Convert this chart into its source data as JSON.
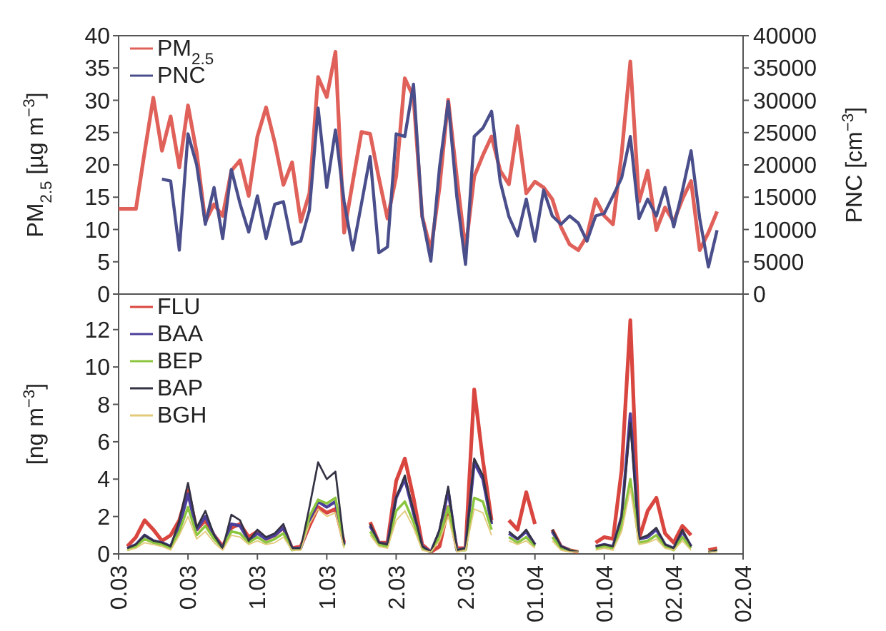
{
  "chart_data": [
    {
      "type": "line",
      "ylabel": "PM$_{2.5}$ [µg m$^{−3}$]",
      "y2label": "PNC [cm$^{−3}$]",
      "legend": "top left",
      "ylim": [
        0,
        40
      ],
      "yticks": [
        0,
        5,
        10,
        15,
        20,
        25,
        30,
        35,
        40
      ],
      "y2lim": [
        0,
        40000
      ],
      "y2ticks": [
        0,
        5000,
        10000,
        15000,
        20000,
        25000,
        30000,
        35000,
        40000
      ],
      "categories": [
        null,
        null,
        null,
        null,
        null,
        null,
        null,
        null,
        null,
        null,
        null,
        null,
        null,
        null,
        null,
        null,
        null,
        null,
        null,
        null,
        null,
        null,
        null,
        null,
        null,
        null,
        null,
        null,
        null,
        null,
        null,
        null,
        null,
        null,
        null,
        null,
        null,
        null,
        null,
        null,
        null,
        null,
        null,
        null,
        null,
        null,
        null,
        null,
        null,
        null,
        null,
        null,
        null,
        null,
        null,
        null,
        null,
        null,
        null,
        null,
        null,
        null,
        null,
        null,
        null,
        null,
        null,
        null,
        null,
        null,
        null,
        null,
        null
      ],
      "series": [
        {
          "name": "PM$_{2.5}$",
          "color": "#e0605a",
          "values": [
            13.2,
            13.2,
            13.2,
            22,
            30.4,
            22.2,
            27.5,
            19.6,
            29.2,
            21.9,
            11.2,
            13.9,
            12.1,
            19.1,
            20.7,
            15.2,
            24.4,
            28.9,
            23.5,
            16.9,
            20.4,
            11.2,
            15.6,
            33.6,
            30.5,
            37.5,
            9.5,
            17.4,
            25.1,
            24.8,
            18,
            11.7,
            18.2,
            33.4,
            30.5,
            12,
            6.8,
            16.5,
            30.1,
            18,
            6.8,
            18.2,
            21.5,
            24.4,
            19.1,
            17,
            26,
            15.6,
            17.4,
            16.5,
            14.7,
            10.4,
            7.7,
            6.8,
            9,
            14.7,
            12.1,
            10.8,
            21.8,
            36,
            14.3,
            19.1,
            9.9,
            13.4,
            11.2,
            14.7,
            17.5,
            6.8,
            9.5,
            12.8,
            null,
            null,
            null
          ]
        },
        {
          "name": "PNC",
          "color": "#4a4f8c",
          "axis": "y2",
          "values": [
            null,
            null,
            null,
            null,
            null,
            17800,
            17500,
            6800,
            24800,
            20000,
            10800,
            16500,
            8600,
            19300,
            14000,
            9600,
            15200,
            8600,
            13900,
            14300,
            7700,
            8200,
            13000,
            28800,
            16500,
            25400,
            14300,
            6800,
            14000,
            21300,
            6400,
            7300,
            24800,
            24400,
            32500,
            12000,
            5100,
            19600,
            29800,
            15000,
            4600,
            24400,
            25700,
            28300,
            17400,
            12000,
            9000,
            14700,
            8200,
            16100,
            12100,
            10800,
            12100,
            11000,
            8200,
            12100,
            12500,
            15200,
            18000,
            24400,
            11700,
            14700,
            12100,
            16500,
            10400,
            16000,
            22200,
            11700,
            4200,
            9900,
            null,
            null,
            null
          ]
        }
      ]
    },
    {
      "type": "line",
      "ylabel": "[ng m$^{−3}$]",
      "legend": "top left",
      "ylim": [
        0,
        13.9
      ],
      "yticks": [
        0,
        2,
        4,
        6,
        8,
        10,
        12
      ],
      "categories": [
        "0.03",
        null,
        null,
        null,
        null,
        null,
        null,
        null,
        "0.03",
        null,
        null,
        null,
        null,
        null,
        null,
        null,
        "1.03",
        null,
        null,
        null,
        null,
        null,
        null,
        null,
        "1.03",
        null,
        null,
        null,
        null,
        null,
        null,
        null,
        "2.03",
        null,
        null,
        null,
        null,
        null,
        null,
        null,
        "2.03",
        null,
        null,
        null,
        null,
        null,
        null,
        null,
        "01.04",
        null,
        null,
        null,
        null,
        null,
        null,
        null,
        "01.04",
        null,
        null,
        null,
        null,
        null,
        null,
        null,
        "02.04",
        null,
        null,
        null,
        null,
        null,
        null,
        null,
        "02.04"
      ],
      "series": [
        {
          "name": "FLU",
          "color": "#d9463f",
          "values": [
            null,
            0.4,
            0.9,
            1.8,
            1.3,
            0.7,
            1.0,
            1.8,
            3.4,
            1.3,
            1.8,
            1.0,
            0.4,
            1.4,
            1.6,
            0.9,
            1.2,
            0.8,
            1.0,
            1.4,
            0.3,
            0.4,
            1.5,
            2.5,
            2.2,
            2.4,
            0.6,
            null,
            null,
            1.7,
            0.6,
            0.6,
            3.9,
            5.1,
            3.0,
            0.5,
            0.1,
            0.4,
            2.5,
            0.3,
            0.3,
            8.8,
            5.0,
            1.8,
            null,
            1.8,
            1.3,
            3.3,
            1.6,
            null,
            1.3,
            0.4,
            0.2,
            0.1,
            null,
            0.6,
            0.9,
            0.8,
            4.5,
            12.5,
            0.8,
            2.3,
            3.0,
            1.1,
            0.6,
            1.5,
            1.0,
            null,
            0.2,
            0.3,
            null,
            null,
            null
          ]
        },
        {
          "name": "BAA",
          "color": "#4b3f9a",
          "values": [
            null,
            0.3,
            0.5,
            1.0,
            0.7,
            0.6,
            0.4,
            1.5,
            3.2,
            1.3,
            2.0,
            1.0,
            0.3,
            1.6,
            1.5,
            0.7,
            1.1,
            0.8,
            1.0,
            1.4,
            0.3,
            0.3,
            1.8,
            2.8,
            2.5,
            2.8,
            0.5,
            null,
            null,
            1.5,
            0.6,
            0.5,
            3.0,
            4.0,
            2.2,
            0.4,
            0.1,
            1.2,
            3.4,
            0.2,
            0.3,
            4.9,
            4.0,
            1.6,
            null,
            1.1,
            0.8,
            1.2,
            0.5,
            null,
            1.2,
            0.4,
            0.2,
            null,
            null,
            0.4,
            0.5,
            0.4,
            2.0,
            7.5,
            0.8,
            0.9,
            1.3,
            0.5,
            0.3,
            1.2,
            0.4,
            null,
            null,
            null,
            null,
            null,
            null
          ]
        },
        {
          "name": "BEP",
          "color": "#8cc63f",
          "values": [
            null,
            0.2,
            0.4,
            0.8,
            0.6,
            0.5,
            0.3,
            1.2,
            2.5,
            1.0,
            1.5,
            0.8,
            0.3,
            1.2,
            1.1,
            0.6,
            0.9,
            0.6,
            0.8,
            1.1,
            0.2,
            0.3,
            2.0,
            2.9,
            2.7,
            3.0,
            0.4,
            null,
            null,
            1.2,
            0.5,
            0.4,
            2.3,
            2.8,
            1.7,
            0.3,
            0.1,
            0.9,
            2.5,
            0.2,
            0.2,
            3.0,
            2.8,
            1.3,
            null,
            0.9,
            0.6,
            0.9,
            0.4,
            null,
            0.9,
            0.3,
            0.2,
            0.1,
            null,
            0.3,
            0.4,
            0.3,
            1.5,
            4.0,
            0.6,
            0.7,
            1.0,
            0.4,
            0.2,
            0.9,
            0.3,
            null,
            0.1,
            0.2,
            null,
            null,
            null
          ]
        },
        {
          "name": "BAP",
          "color": "#333344",
          "values": [
            null,
            0.3,
            0.5,
            1.0,
            0.7,
            0.6,
            0.4,
            1.8,
            3.8,
            1.4,
            2.3,
            1.0,
            0.3,
            2.1,
            1.8,
            0.7,
            1.3,
            0.9,
            1.1,
            1.6,
            0.3,
            0.3,
            2.5,
            4.9,
            4.0,
            4.4,
            0.5,
            null,
            null,
            1.6,
            0.6,
            0.5,
            3.0,
            4.2,
            2.3,
            0.4,
            0.1,
            1.3,
            3.6,
            0.2,
            0.3,
            5.1,
            4.2,
            1.7,
            null,
            1.2,
            0.8,
            1.3,
            0.5,
            null,
            1.3,
            0.4,
            0.2,
            0.1,
            null,
            0.4,
            0.5,
            0.4,
            2.0,
            7.0,
            0.8,
            1.0,
            1.4,
            0.5,
            0.3,
            1.3,
            0.4,
            null,
            0.1,
            0.2,
            null,
            null,
            null
          ]
        },
        {
          "name": "BGH",
          "color": "#e3c97a",
          "values": [
            null,
            0.2,
            0.3,
            0.6,
            0.5,
            0.4,
            0.2,
            1.0,
            2.0,
            0.8,
            1.2,
            0.6,
            0.2,
            1.0,
            0.9,
            0.5,
            0.7,
            0.5,
            0.6,
            0.9,
            0.2,
            0.2,
            1.6,
            2.4,
            2.0,
            2.2,
            0.3,
            null,
            null,
            1.0,
            0.4,
            0.3,
            1.8,
            2.3,
            1.4,
            0.2,
            0.1,
            0.7,
            2.0,
            0.1,
            0.2,
            2.4,
            2.2,
            1.0,
            null,
            0.7,
            0.5,
            0.7,
            0.3,
            null,
            0.7,
            0.2,
            0.1,
            0.1,
            null,
            0.2,
            0.3,
            0.2,
            1.2,
            3.5,
            0.5,
            0.6,
            0.8,
            0.3,
            0.2,
            0.7,
            0.2,
            null,
            0.1,
            0.1,
            null,
            null,
            null
          ]
        }
      ]
    }
  ]
}
